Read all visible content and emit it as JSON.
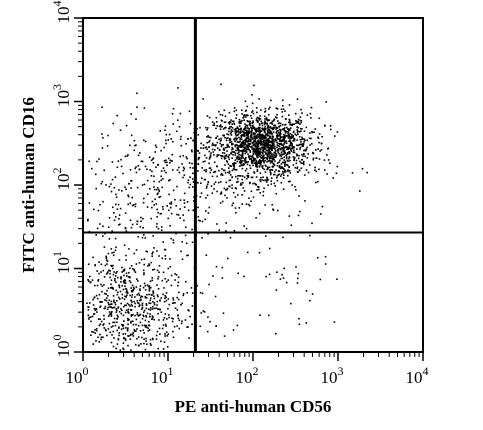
{
  "chart_data": {
    "type": "scatter",
    "plot_kind": "flow cytometry dot plot",
    "xlabel": "PE anti-human CD56",
    "ylabel": "FITC anti-human CD16",
    "x_scale": "log",
    "y_scale": "log",
    "xlim": [
      1,
      10000
    ],
    "ylim": [
      1,
      10000
    ],
    "x_ticks": [
      {
        "value": 1,
        "base": "10",
        "exp": "0"
      },
      {
        "value": 10,
        "base": "10",
        "exp": "1"
      },
      {
        "value": 100,
        "base": "10",
        "exp": "2"
      },
      {
        "value": 1000,
        "base": "10",
        "exp": "3"
      },
      {
        "value": 10000,
        "base": "10",
        "exp": "4"
      }
    ],
    "y_ticks": [
      {
        "value": 1,
        "base": "10",
        "exp": "0"
      },
      {
        "value": 10,
        "base": "10",
        "exp": "1"
      },
      {
        "value": 100,
        "base": "10",
        "exp": "2"
      },
      {
        "value": 1000,
        "base": "10",
        "exp": "3"
      },
      {
        "value": 10000,
        "base": "10",
        "exp": "4"
      }
    ],
    "quadrant_gates": {
      "x": 21,
      "y": 27
    },
    "grid": false,
    "legend": "none",
    "point_color": "#000000",
    "populations": [
      {
        "center_log": [
          2.1,
          2.5
        ],
        "spread_log": [
          0.28,
          0.18
        ],
        "count": 1300
      },
      {
        "center_log": [
          1.85,
          2.3
        ],
        "spread_log": [
          0.5,
          0.35
        ],
        "count": 450
      },
      {
        "center_log": [
          0.5,
          0.5
        ],
        "spread_log": [
          0.35,
          0.3
        ],
        "count": 550
      },
      {
        "center_log": [
          0.6,
          1.0
        ],
        "spread_log": [
          0.4,
          0.4
        ],
        "count": 220
      },
      {
        "center_log": [
          0.8,
          2.0
        ],
        "spread_log": [
          0.4,
          0.45
        ],
        "count": 260
      },
      {
        "center_log": [
          2.4,
          0.8
        ],
        "spread_log": [
          0.5,
          0.35
        ],
        "count": 55
      }
    ]
  }
}
